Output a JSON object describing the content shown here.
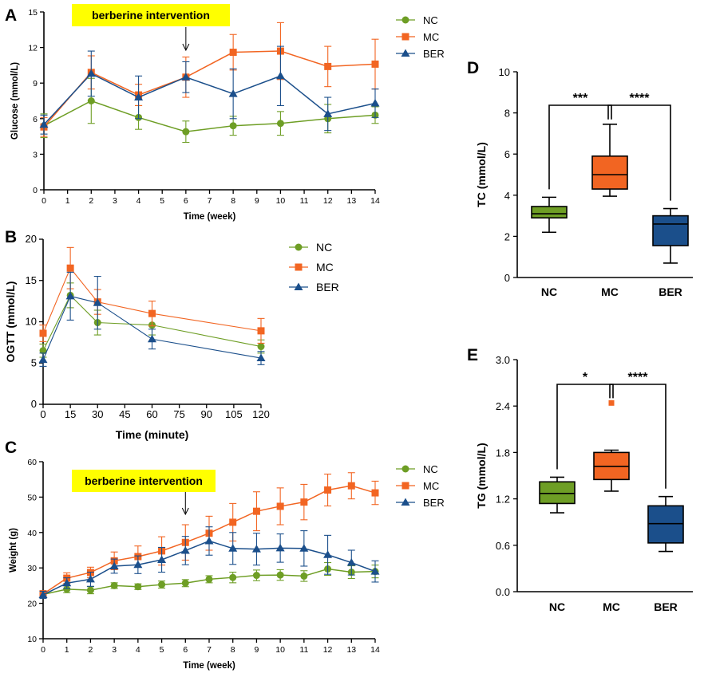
{
  "colors": {
    "NC": "#6e9e25",
    "MC": "#f26522",
    "BER": "#1b4f8b"
  },
  "chart_data": [
    {
      "panel": "A",
      "type": "line",
      "xlabel": "Time (week)",
      "ylabel": "Glucose (mmol/L)",
      "xlim": [
        0,
        14
      ],
      "ylim": [
        0,
        15
      ],
      "xticks": [
        0,
        1,
        2,
        3,
        4,
        5,
        6,
        7,
        8,
        9,
        10,
        11,
        12,
        13,
        14
      ],
      "yticks": [
        0,
        3,
        6,
        9,
        12,
        15
      ],
      "banner": "berberine intervention",
      "arrow_at": 6,
      "legend": [
        "NC",
        "MC",
        "BER"
      ],
      "series": [
        {
          "name": "NC",
          "marker": "circle",
          "x": [
            0,
            2,
            4,
            6,
            8,
            10,
            12,
            14
          ],
          "y": [
            5.4,
            7.5,
            6.1,
            4.9,
            5.4,
            5.6,
            6.0,
            6.3
          ],
          "err": [
            1.0,
            1.9,
            1.0,
            0.9,
            0.8,
            1.0,
            1.2,
            0.7
          ]
        },
        {
          "name": "MC",
          "marker": "square",
          "x": [
            0,
            2,
            4,
            6,
            8,
            10,
            12,
            14
          ],
          "y": [
            5.3,
            9.9,
            8.0,
            9.5,
            11.6,
            11.7,
            10.4,
            10.6
          ],
          "err": [
            0.8,
            1.4,
            0.9,
            1.7,
            1.5,
            2.4,
            1.7,
            2.1
          ]
        },
        {
          "name": "BER",
          "marker": "triangle",
          "x": [
            0,
            2,
            4,
            6,
            8,
            10,
            12,
            14
          ],
          "y": [
            5.5,
            9.8,
            7.8,
            9.5,
            8.1,
            9.6,
            6.4,
            7.3
          ],
          "err": [
            0.8,
            1.9,
            1.8,
            1.3,
            2.1,
            2.5,
            1.4,
            1.2
          ]
        }
      ]
    },
    {
      "panel": "B",
      "type": "line",
      "xlabel": "Time (minute)",
      "ylabel": "OGTT (mmol/L)",
      "xlim": [
        0,
        120
      ],
      "ylim": [
        0,
        20
      ],
      "xticks": [
        0,
        15,
        30,
        45,
        60,
        75,
        90,
        105,
        120
      ],
      "yticks": [
        0,
        5,
        10,
        15,
        20
      ],
      "legend": [
        "NC",
        "MC",
        "BER"
      ],
      "series": [
        {
          "name": "NC",
          "marker": "circle",
          "x": [
            0,
            15,
            30,
            60,
            120
          ],
          "y": [
            6.5,
            13.2,
            9.9,
            9.6,
            7.0
          ],
          "err": [
            0.8,
            1.5,
            1.5,
            1.2,
            0.8
          ]
        },
        {
          "name": "MC",
          "marker": "square",
          "x": [
            0,
            15,
            30,
            60,
            120
          ],
          "y": [
            8.6,
            16.5,
            12.4,
            11.0,
            8.9
          ],
          "err": [
            1.0,
            2.5,
            1.5,
            1.5,
            1.5
          ]
        },
        {
          "name": "BER",
          "marker": "triangle",
          "x": [
            0,
            15,
            30,
            60,
            120
          ],
          "y": [
            5.4,
            13.1,
            12.3,
            7.9,
            5.6
          ],
          "err": [
            0.8,
            2.9,
            3.2,
            1.2,
            0.8
          ]
        }
      ]
    },
    {
      "panel": "C",
      "type": "line",
      "xlabel": "Time (week)",
      "ylabel": "Weight (g)",
      "xlim": [
        0,
        14
      ],
      "ylim": [
        10,
        60
      ],
      "xticks": [
        0,
        1,
        2,
        3,
        4,
        5,
        6,
        7,
        8,
        9,
        10,
        11,
        12,
        13,
        14
      ],
      "yticks": [
        10,
        20,
        30,
        40,
        50,
        60
      ],
      "banner": "berberine intervention",
      "arrow_at": 6,
      "legend": [
        "NC",
        "MC",
        "BER"
      ],
      "series": [
        {
          "name": "NC",
          "marker": "circle",
          "x": [
            0,
            1,
            2,
            3,
            4,
            5,
            6,
            7,
            8,
            9,
            10,
            11,
            12,
            13,
            14
          ],
          "y": [
            22.5,
            24.0,
            23.7,
            25.0,
            24.7,
            25.3,
            25.7,
            26.8,
            27.3,
            27.9,
            28.0,
            27.7,
            29.7,
            28.8,
            29.0
          ],
          "err": [
            1.0,
            1.0,
            1.0,
            0.8,
            0.8,
            1.0,
            1.0,
            1.0,
            1.5,
            1.5,
            1.5,
            1.5,
            1.8,
            1.8,
            1.8
          ]
        },
        {
          "name": "MC",
          "marker": "square",
          "x": [
            0,
            1,
            2,
            3,
            4,
            5,
            6,
            7,
            8,
            9,
            10,
            11,
            12,
            13,
            14
          ],
          "y": [
            22.6,
            27.1,
            28.7,
            32.0,
            33.2,
            34.8,
            37.2,
            39.8,
            42.9,
            46.0,
            47.4,
            48.6,
            52.0,
            53.2,
            51.2
          ],
          "err": [
            1.0,
            1.5,
            1.5,
            2.5,
            3.0,
            4.0,
            5.0,
            4.8,
            5.3,
            5.5,
            5.2,
            5.0,
            4.5,
            3.7,
            3.3
          ]
        },
        {
          "name": "BER",
          "marker": "triangle",
          "x": [
            0,
            1,
            2,
            3,
            4,
            5,
            6,
            7,
            8,
            9,
            10,
            11,
            12,
            13,
            14
          ],
          "y": [
            22.4,
            25.7,
            26.8,
            30.5,
            30.9,
            32.3,
            34.9,
            37.6,
            35.5,
            35.3,
            35.6,
            35.5,
            33.7,
            31.5,
            29.0
          ],
          "err": [
            1.0,
            1.5,
            2.0,
            2.0,
            2.5,
            3.5,
            4.0,
            4.0,
            4.5,
            4.5,
            4.0,
            5.0,
            5.5,
            3.5,
            3.0
          ]
        }
      ]
    },
    {
      "panel": "D",
      "type": "box",
      "ylabel": "TC (mmol/L)",
      "ylim": [
        0,
        10
      ],
      "yticks": [
        0,
        2,
        4,
        6,
        8,
        10
      ],
      "categories": [
        "NC",
        "MC",
        "BER"
      ],
      "boxes": [
        {
          "name": "NC",
          "min": 2.2,
          "q1": 2.9,
          "median": 3.1,
          "q3": 3.45,
          "max": 3.9
        },
        {
          "name": "MC",
          "min": 3.95,
          "q1": 4.3,
          "median": 5.0,
          "q3": 5.9,
          "max": 7.45
        },
        {
          "name": "BER",
          "min": 0.7,
          "q1": 1.55,
          "median": 2.6,
          "q3": 3.0,
          "max": 3.35
        }
      ],
      "significance": [
        {
          "from": "NC",
          "to": "MC",
          "label": "***"
        },
        {
          "from": "MC",
          "to": "BER",
          "label": "****"
        }
      ]
    },
    {
      "panel": "E",
      "type": "box",
      "ylabel": "TG (mmol/L)",
      "ylim": [
        0,
        3
      ],
      "yticks": [
        0.0,
        0.6,
        1.2,
        1.8,
        2.4,
        3.0
      ],
      "ytick_labels": [
        "0.0",
        "0.6",
        "1.2",
        "1.8",
        "2.4",
        "3.0"
      ],
      "categories": [
        "NC",
        "MC",
        "BER"
      ],
      "boxes": [
        {
          "name": "NC",
          "min": 1.02,
          "q1": 1.14,
          "median": 1.27,
          "q3": 1.42,
          "max": 1.48
        },
        {
          "name": "MC",
          "min": 1.3,
          "q1": 1.45,
          "median": 1.62,
          "q3": 1.8,
          "max": 1.83,
          "outlier": 2.44
        },
        {
          "name": "BER",
          "min": 0.52,
          "q1": 0.63,
          "median": 0.88,
          "q3": 1.11,
          "max": 1.23
        }
      ],
      "significance": [
        {
          "from": "NC",
          "to": "MC",
          "label": "*"
        },
        {
          "from": "MC",
          "to": "BER",
          "label": "****"
        }
      ]
    }
  ]
}
